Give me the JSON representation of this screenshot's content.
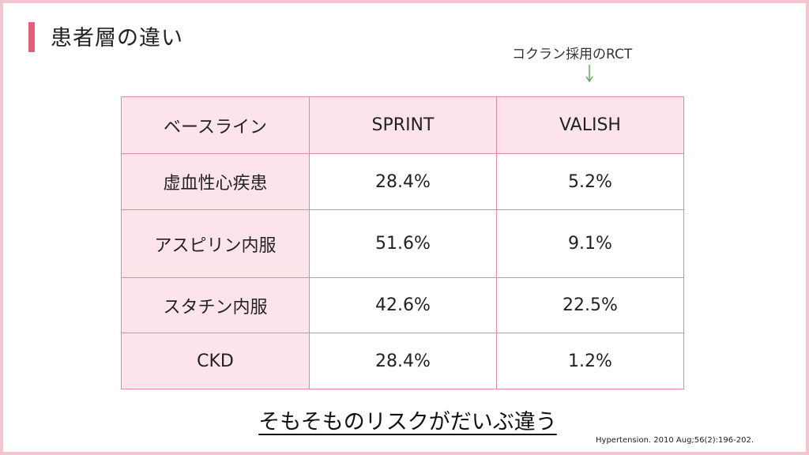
{
  "slide": {
    "title": "患者層の違い",
    "annotation": "コクラン採用のRCT",
    "summary": "そもそものリスクがだいぶ違う",
    "citation": "Hypertension. 2010 Aug;56(2):196-202.",
    "colors": {
      "accent": "#e2607a",
      "border": "#f5c6d0",
      "header_fill": "#fde4eb",
      "grid": "#e08ca0",
      "arrow": "#5cae5c"
    },
    "icons": {
      "arrow": "arrow-down-icon"
    }
  },
  "table": {
    "headers": [
      "ベースライン",
      "SPRINT",
      "VALISH"
    ],
    "rows": [
      [
        "虚血性心疾患",
        "28.4%",
        "5.2%"
      ],
      [
        "アスピリン内服",
        "51.6%",
        "9.1%"
      ],
      [
        "スタチン内服",
        "42.6%",
        "22.5%"
      ],
      [
        "CKD",
        "28.4%",
        "1.2%"
      ]
    ]
  }
}
